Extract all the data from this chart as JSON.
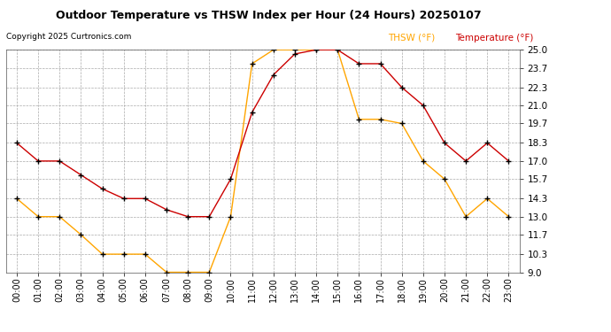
{
  "title": "Outdoor Temperature vs THSW Index per Hour (24 Hours) 20250107",
  "copyright": "Copyright 2025 Curtronics.com",
  "legend_thsw": "THSW (°F)",
  "legend_temp": "Temperature (°F)",
  "hours": [
    "00:00",
    "01:00",
    "02:00",
    "03:00",
    "04:00",
    "05:00",
    "06:00",
    "07:00",
    "08:00",
    "09:00",
    "10:00",
    "11:00",
    "12:00",
    "13:00",
    "14:00",
    "15:00",
    "16:00",
    "17:00",
    "18:00",
    "19:00",
    "20:00",
    "21:00",
    "22:00",
    "23:00"
  ],
  "temperature": [
    18.3,
    17.0,
    17.0,
    16.0,
    15.0,
    14.3,
    14.3,
    13.5,
    13.0,
    13.0,
    15.7,
    20.5,
    23.2,
    24.7,
    25.0,
    25.0,
    24.0,
    24.0,
    22.3,
    21.0,
    18.3,
    17.0,
    18.3,
    17.0
  ],
  "thsw": [
    14.3,
    13.0,
    13.0,
    11.7,
    10.3,
    10.3,
    10.3,
    9.0,
    9.0,
    9.0,
    13.0,
    24.0,
    25.0,
    25.0,
    25.0,
    25.0,
    20.0,
    20.0,
    19.7,
    17.0,
    15.7,
    13.0,
    14.3,
    13.0
  ],
  "thsw_color": "#FFA500",
  "temp_color": "#CC0000",
  "marker_color": "#000000",
  "bg_color": "#FFFFFF",
  "grid_color": "#AAAAAA",
  "yticks": [
    9.0,
    10.3,
    11.7,
    13.0,
    14.3,
    15.7,
    17.0,
    18.3,
    19.7,
    21.0,
    22.3,
    23.7,
    25.0
  ],
  "ymin": 9.0,
  "ymax": 25.0
}
